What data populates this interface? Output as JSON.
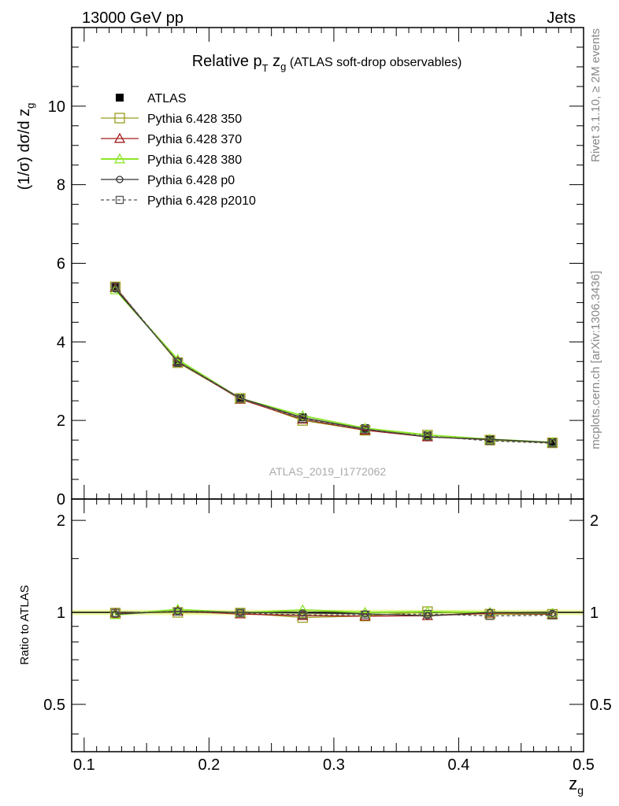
{
  "header": {
    "left": "13000 GeV pp",
    "right": "Jets"
  },
  "side_labels": {
    "rivet": "Rivet 3.1.10, ≥ 2M events",
    "mcplots": "mcplots.cern.ch [arXiv:1306.3436]"
  },
  "chart_data": [
    {
      "type": "line",
      "title": {
        "prefix": "Relative p",
        "sub": "T",
        "var": " z",
        "var_sub": "g",
        "suffix": " (ATLAS soft-drop observables)"
      },
      "ylabel": {
        "main": "(1/σ) dσ/d z",
        "sub": "g"
      },
      "analysis_label": "ATLAS_2019_I1772062",
      "xlim": [
        0.09,
        0.5
      ],
      "ylim": [
        0,
        12
      ],
      "yticks": [
        0,
        2,
        4,
        6,
        8,
        10
      ],
      "ytick_labels": [
        "0",
        "2",
        "4",
        "6",
        "8",
        "10"
      ],
      "x": [
        0.125,
        0.175,
        0.225,
        0.275,
        0.325,
        0.375,
        0.425,
        0.475
      ],
      "series": [
        {
          "name": "ATLAS",
          "marker": "filled-square",
          "color": "#000000",
          "values": [
            5.42,
            3.47,
            2.57,
            2.08,
            1.8,
            1.62,
            1.52,
            1.45
          ]
        },
        {
          "name": "Pythia 6.428 350",
          "marker": "open-square",
          "color": "#9b9b1e",
          "values": [
            5.4,
            3.47,
            2.56,
            2.0,
            1.75,
            1.63,
            1.5,
            1.43
          ]
        },
        {
          "name": "Pythia 6.428 370",
          "marker": "open-triangle",
          "color": "#a31c1c",
          "values": [
            5.38,
            3.5,
            2.54,
            2.03,
            1.75,
            1.58,
            1.51,
            1.43
          ]
        },
        {
          "name": "Pythia 6.428 380",
          "marker": "open-triangle",
          "color": "#8ee62a",
          "values": [
            5.32,
            3.55,
            2.56,
            2.12,
            1.8,
            1.63,
            1.52,
            1.44
          ]
        },
        {
          "name": "Pythia 6.428 p0",
          "marker": "open-circle",
          "color": "#333333",
          "values": [
            5.35,
            3.5,
            2.57,
            2.07,
            1.78,
            1.58,
            1.52,
            1.44
          ]
        },
        {
          "name": "Pythia 6.428 p2010",
          "marker": "open-square-dashed",
          "color": "#555555",
          "values": [
            5.4,
            3.49,
            2.56,
            2.04,
            1.77,
            1.6,
            1.48,
            1.42
          ]
        }
      ]
    },
    {
      "type": "line",
      "ylabel": "Ratio to ATLAS",
      "xlabel": {
        "main": "z",
        "sub": "g"
      },
      "xlim": [
        0.09,
        0.5
      ],
      "ylim": [
        0.35,
        2.35
      ],
      "log_y": true,
      "xticks": [
        0.1,
        0.2,
        0.3,
        0.4,
        0.5
      ],
      "xtick_labels": [
        "0.1",
        "0.2",
        "0.3",
        "0.4",
        "0.5"
      ],
      "yticks": [
        0.5,
        1,
        2
      ],
      "ytick_labels": [
        "0.5",
        "1",
        "2"
      ],
      "x": [
        0.125,
        0.175,
        0.225,
        0.275,
        0.325,
        0.375,
        0.425,
        0.475
      ],
      "series": [
        {
          "name": "Pythia 6.428 350",
          "color": "#9b9b1e",
          "values": [
            0.995,
            1.0,
            0.995,
            0.962,
            0.973,
            1.006,
            0.987,
            0.986
          ]
        },
        {
          "name": "Pythia 6.428 370",
          "color": "#a31c1c",
          "values": [
            0.993,
            1.009,
            0.988,
            0.976,
            0.972,
            0.975,
            0.993,
            0.986
          ]
        },
        {
          "name": "Pythia 6.428 380",
          "color": "#8ee62a",
          "values": [
            0.982,
            1.023,
            0.996,
            1.019,
            1.0,
            1.006,
            1.0,
            0.993
          ]
        },
        {
          "name": "Pythia 6.428 p0",
          "color": "#333333",
          "values": [
            0.987,
            1.009,
            1.0,
            0.995,
            0.989,
            0.975,
            1.0,
            0.993
          ]
        },
        {
          "name": "Pythia 6.428 p2010",
          "color": "#555555",
          "values": [
            0.996,
            1.006,
            0.996,
            0.981,
            0.983,
            0.988,
            0.974,
            0.979
          ]
        }
      ]
    }
  ]
}
